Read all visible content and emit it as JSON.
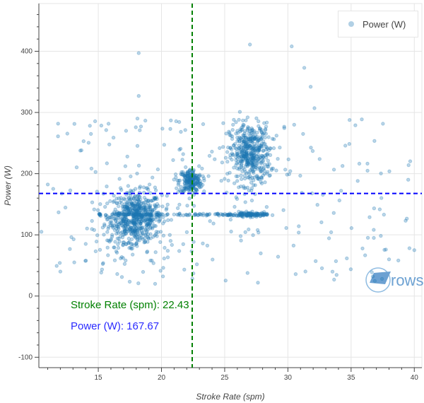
{
  "chart_data": {
    "type": "scatter",
    "xlabel": "Stroke Rate (spm)",
    "ylabel": "Power (W)",
    "xlim": [
      10.3,
      40.6
    ],
    "ylim": [
      -117,
      478
    ],
    "xticks": [
      15,
      20,
      25,
      30,
      35,
      40
    ],
    "yticks": [
      -100,
      0,
      100,
      200,
      300,
      400
    ],
    "grid": true,
    "legend": {
      "entries": [
        "Power (W)"
      ],
      "placement": "top-right"
    },
    "series": [
      {
        "name": "Power (W)",
        "color": "#1f77b4",
        "clusters": [
          {
            "x": 18,
            "y": 130,
            "sx": 1.0,
            "sy": 20,
            "n": 520
          },
          {
            "x": 22.3,
            "y": 188,
            "sx": 0.45,
            "sy": 10,
            "n": 220
          },
          {
            "x": 27,
            "y": 232,
            "sx": 0.8,
            "sy": 25,
            "n": 460
          },
          {
            "x": 17.5,
            "y": 95,
            "sx": 1.8,
            "sy": 30,
            "n": 120
          },
          {
            "x": 27,
            "y": 133,
            "sx": 0.6,
            "sy": 2,
            "n": 80
          }
        ],
        "line_segments": [
          {
            "x0": 15,
            "x1": 28.5,
            "y": 133,
            "n": 170
          }
        ],
        "scatter_band": {
          "x0": 11,
          "x1": 40,
          "y0": 20,
          "y1": 290,
          "n": 220
        },
        "points": [
          [
            18.2,
            397
          ],
          [
            27,
            411
          ],
          [
            30.3,
            408
          ],
          [
            31.3,
            373
          ],
          [
            31.8,
            342
          ],
          [
            18.2,
            327
          ],
          [
            18.1,
            290
          ],
          [
            26.2,
            301
          ],
          [
            32.1,
            307
          ],
          [
            17.2,
            270
          ],
          [
            17.3,
            228
          ],
          [
            30.5,
            280
          ],
          [
            31.2,
            265
          ],
          [
            13.1,
            55
          ],
          [
            12.0,
            40
          ],
          [
            38,
            60
          ],
          [
            40,
            75
          ],
          [
            10.5,
            105
          ],
          [
            36.8,
            95
          ],
          [
            37.6,
            133
          ]
        ]
      }
    ],
    "crosshair": {
      "x": 22.43,
      "y": 167.67,
      "x_color": "#008000",
      "y_color": "#0000ff"
    }
  },
  "hover": {
    "x_text": "Stroke Rate (spm):  22.43",
    "y_text": "Power (W): 167.67"
  },
  "logo_text": "rows"
}
